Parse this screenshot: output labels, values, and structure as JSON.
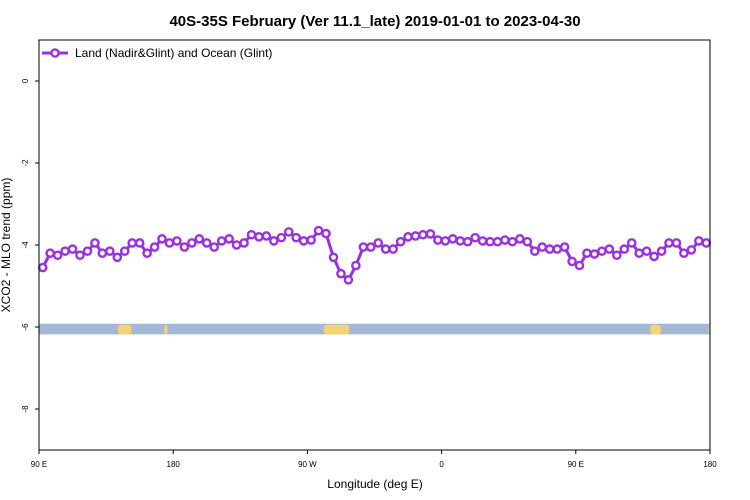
{
  "chart_data": {
    "type": "line",
    "title": "40S-35S February (Ver 11.1_late)   2019-01-01 to 2023-04-30",
    "xlabel": "Longitude (deg E)",
    "ylabel": "XCO2 - MLO trend (ppm)",
    "xlim": [
      90,
      540
    ],
    "ylim": [
      -9,
      1
    ],
    "x_ticks": [
      {
        "value": 90,
        "label": "90 E"
      },
      {
        "value": 180,
        "label": "180"
      },
      {
        "value": 270,
        "label": "90 W"
      },
      {
        "value": 360,
        "label": "0"
      },
      {
        "value": 450,
        "label": "90 E"
      },
      {
        "value": 540,
        "label": "180"
      }
    ],
    "y_ticks": [
      {
        "value": 0,
        "label": "0"
      },
      {
        "value": -2,
        "label": "-2"
      },
      {
        "value": -4,
        "label": "-4"
      },
      {
        "value": -6,
        "label": "-6"
      },
      {
        "value": -8,
        "label": "-8"
      }
    ],
    "legend_position": "top-left",
    "grid": false,
    "series": [
      {
        "name": "Land (Nadir&Glint) and Ocean (Glint)",
        "color": "#9b30e0",
        "x": [
          92.5,
          97.5,
          102.5,
          107.5,
          112.5,
          117.5,
          122.5,
          127.5,
          132.5,
          137.5,
          142.5,
          147.5,
          152.5,
          157.5,
          162.5,
          167.5,
          172.5,
          177.5,
          182.5,
          187.5,
          192.5,
          197.5,
          202.5,
          207.5,
          212.5,
          217.5,
          222.5,
          227.5,
          232.5,
          237.5,
          242.5,
          247.5,
          252.5,
          257.5,
          262.5,
          267.5,
          272.5,
          277.5,
          282.5,
          287.5,
          292.5,
          297.5,
          302.5,
          307.5,
          312.5,
          317.5,
          322.5,
          327.5,
          332.5,
          337.5,
          342.5,
          347.5,
          352.5,
          357.5,
          362.5,
          367.5,
          372.5,
          377.5,
          382.5,
          387.5,
          392.5,
          397.5,
          402.5,
          407.5,
          412.5,
          417.5,
          422.5,
          427.5,
          432.5,
          437.5,
          442.5,
          447.5,
          452.5,
          457.5,
          462.5,
          467.5,
          472.5,
          477.5,
          482.5,
          487.5,
          492.5,
          497.5,
          502.5,
          507.5,
          512.5,
          517.5,
          522.5,
          527.5,
          532.5,
          537.5
        ],
        "y": [
          -4.55,
          -4.2,
          -4.25,
          -4.15,
          -4.1,
          -4.25,
          -4.15,
          -3.95,
          -4.2,
          -4.15,
          -4.3,
          -4.15,
          -3.95,
          -3.95,
          -4.2,
          -4.05,
          -3.85,
          -3.95,
          -3.9,
          -4.05,
          -3.95,
          -3.85,
          -3.95,
          -4.05,
          -3.9,
          -3.85,
          -4.0,
          -3.95,
          -3.75,
          -3.8,
          -3.78,
          -3.9,
          -3.82,
          -3.68,
          -3.82,
          -3.9,
          -3.88,
          -3.65,
          -3.72,
          -4.3,
          -4.7,
          -4.85,
          -4.5,
          -4.05,
          -4.05,
          -3.95,
          -4.1,
          -4.1,
          -3.92,
          -3.8,
          -3.78,
          -3.75,
          -3.73,
          -3.88,
          -3.9,
          -3.85,
          -3.9,
          -3.92,
          -3.82,
          -3.9,
          -3.92,
          -3.92,
          -3.88,
          -3.92,
          -3.85,
          -3.92,
          -4.15,
          -4.05,
          -4.1,
          -4.1,
          -4.05,
          -4.4,
          -4.5,
          -4.2,
          -4.22,
          -4.15,
          -4.1,
          -4.25,
          -4.1,
          -3.95,
          -4.2,
          -4.15,
          -4.28,
          -4.15,
          -3.95,
          -3.95,
          -4.2,
          -4.12,
          -3.9,
          -3.95
        ]
      }
    ],
    "land_ocean_band": {
      "y_range": [
        -6.18,
        -5.92
      ],
      "ocean_color": "#a2b8d6",
      "land_color": "#f5d570",
      "land_segments": [
        [
          143,
          152
        ],
        [
          174,
          176
        ],
        [
          281,
          298
        ],
        [
          500,
          507
        ],
        [
          539,
          540
        ]
      ]
    }
  }
}
